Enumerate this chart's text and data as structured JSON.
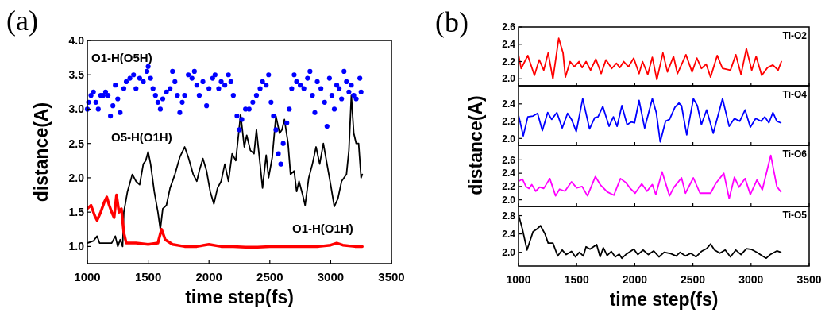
{
  "chart_data": [
    {
      "type": "line",
      "title": "(a)",
      "xlabel": "time step(fs)",
      "ylabel": "distance(A)",
      "xlim": [
        1000,
        3500
      ],
      "xticks": [
        1000,
        1500,
        2000,
        2500,
        3000,
        3500
      ],
      "ylim": [
        0.75,
        4.0
      ],
      "yticks": [
        {
          "value": 1,
          "label": "1.0"
        },
        {
          "value": 1.5,
          "label": "1.5"
        },
        {
          "value": 2,
          "label": "2.0"
        },
        {
          "value": 2.5,
          "label": "2.5"
        },
        {
          "value": 3,
          "label": "3.0"
        },
        {
          "value": 3.5,
          "label": "3.5"
        },
        {
          "value": 4,
          "label": "4.0"
        }
      ],
      "series": [
        {
          "name": "O1-H(O5H)",
          "type": "scatter",
          "marker": "circle",
          "color": "#0000ff",
          "x": [
            1000,
            1010,
            1030,
            1050,
            1070,
            1090,
            1110,
            1130,
            1150,
            1170,
            1190,
            1210,
            1230,
            1250,
            1270,
            1300,
            1320,
            1350,
            1380,
            1400,
            1430,
            1460,
            1490,
            1500,
            1520,
            1540,
            1560,
            1580,
            1600,
            1620,
            1650,
            1680,
            1700,
            1720,
            1740,
            1760,
            1780,
            1800,
            1830,
            1860,
            1880,
            1900,
            1920,
            1950,
            1980,
            2000,
            2030,
            2050,
            2080,
            2100,
            2130,
            2160,
            2180,
            2200,
            2230,
            2250,
            2270,
            2300,
            2330,
            2360,
            2390,
            2420,
            2440,
            2470,
            2490,
            2510,
            2530,
            2550,
            2570,
            2590,
            2610,
            2640,
            2660,
            2680,
            2700,
            2720,
            2750,
            2780,
            2810,
            2830,
            2850,
            2870,
            2890,
            2920,
            2950,
            2970,
            2990,
            3010,
            3030,
            3050,
            3070,
            3090,
            3110,
            3130,
            3150,
            3170,
            3190,
            3210,
            3240,
            3250
          ],
          "values": [
            3.0,
            3.1,
            3.2,
            3.25,
            3.1,
            3.0,
            3.2,
            3.2,
            3.25,
            3.2,
            2.9,
            3.05,
            3.35,
            3.15,
            2.95,
            3.3,
            3.4,
            3.45,
            3.5,
            3.3,
            3.45,
            3.4,
            3.55,
            3.62,
            3.45,
            3.3,
            3.2,
            3.1,
            3.0,
            3.15,
            3.25,
            3.3,
            3.55,
            3.4,
            3.2,
            2.95,
            3.1,
            3.2,
            3.5,
            3.45,
            3.55,
            3.35,
            3.2,
            3.4,
            3.05,
            3.3,
            3.45,
            3.5,
            3.3,
            3.4,
            3.35,
            3.5,
            3.4,
            3.2,
            2.9,
            2.7,
            2.85,
            3.0,
            3.0,
            3.1,
            3.2,
            3.3,
            3.4,
            3.35,
            3.5,
            3.1,
            2.9,
            2.7,
            2.35,
            2.2,
            2.5,
            2.8,
            3.0,
            3.3,
            3.5,
            3.4,
            3.35,
            3.3,
            3.45,
            3.55,
            3.2,
            2.95,
            3.4,
            3.3,
            3.1,
            2.75,
            3.45,
            3.2,
            3.0,
            3.35,
            3.3,
            3.15,
            3.55,
            3.4,
            3.25,
            3.35,
            3.2,
            3.15,
            3.45,
            3.25
          ]
        },
        {
          "name": "O5-H(O1H)",
          "color": "#000000",
          "x": [
            1000,
            1050,
            1080,
            1100,
            1150,
            1200,
            1230,
            1250,
            1270,
            1290,
            1300,
            1330,
            1370,
            1400,
            1430,
            1460,
            1480,
            1500,
            1520,
            1550,
            1580,
            1600,
            1620,
            1650,
            1680,
            1720,
            1760,
            1800,
            1830,
            1870,
            1900,
            1920,
            1950,
            1980,
            2010,
            2040,
            2070,
            2100,
            2130,
            2160,
            2190,
            2220,
            2260,
            2290,
            2310,
            2340,
            2370,
            2390,
            2420,
            2440,
            2470,
            2490,
            2520,
            2550,
            2580,
            2600,
            2620,
            2650,
            2670,
            2700,
            2720,
            2740,
            2770,
            2790,
            2820,
            2850,
            2880,
            2910,
            2940,
            2970,
            3000,
            3030,
            3060,
            3090,
            3130,
            3150,
            3170,
            3190,
            3210,
            3230,
            3250,
            3260
          ],
          "values": [
            1.05,
            1.08,
            1.15,
            1.05,
            1.05,
            1.05,
            1.15,
            1.0,
            1.1,
            1.0,
            1.5,
            1.8,
            2.05,
            1.95,
            1.9,
            2.2,
            2.25,
            2.38,
            2.2,
            1.8,
            1.5,
            1.25,
            1.55,
            1.6,
            1.85,
            2.05,
            2.3,
            2.45,
            2.3,
            2.05,
            1.95,
            2.1,
            2.28,
            2.1,
            1.8,
            1.62,
            1.85,
            1.95,
            2.2,
            1.95,
            2.35,
            2.25,
            2.92,
            2.45,
            2.62,
            2.4,
            2.35,
            2.7,
            2.2,
            1.85,
            2.33,
            2.0,
            2.3,
            2.9,
            2.65,
            2.7,
            2.85,
            2.5,
            2.05,
            2.1,
            1.8,
            1.95,
            1.75,
            1.6,
            2.0,
            2.2,
            2.45,
            2.2,
            2.5,
            2.2,
            1.9,
            1.58,
            1.7,
            1.95,
            2.05,
            2.4,
            3.2,
            2.65,
            2.5,
            2.5,
            2.0,
            2.05
          ]
        },
        {
          "name": "O1-H(O1H)",
          "color": "#ff0000",
          "x": [
            1000,
            1030,
            1060,
            1080,
            1110,
            1140,
            1160,
            1180,
            1200,
            1220,
            1240,
            1260,
            1280,
            1300,
            1320,
            1400,
            1500,
            1580,
            1610,
            1640,
            1700,
            1800,
            1900,
            2000,
            2100,
            2200,
            2300,
            2400,
            2500,
            2600,
            2700,
            2800,
            2900,
            3000,
            3050,
            3100,
            3200,
            3260
          ],
          "values": [
            1.55,
            1.6,
            1.45,
            1.38,
            1.5,
            1.65,
            1.72,
            1.6,
            1.5,
            1.42,
            1.75,
            1.5,
            1.55,
            1.2,
            1.05,
            1.05,
            1.03,
            1.05,
            1.25,
            1.1,
            1.03,
            1.0,
            1.0,
            1.03,
            1.0,
            1.0,
            0.99,
            0.99,
            1.0,
            1.0,
            1.0,
            1.0,
            1.0,
            1.02,
            1.05,
            1.02,
            1.0,
            1.0
          ]
        }
      ]
    },
    {
      "type": "line",
      "title": "(b)",
      "xlim": [
        1000,
        3500
      ],
      "xticks": [
        1000,
        1500,
        2000,
        2500,
        3000,
        3500
      ],
      "tick_labels": "y",
      "ylim": [
        1.92,
        2.6
      ],
      "yticks": [
        {
          "value": 2,
          "label": "2.0"
        },
        {
          "value": 2.2,
          "label": "2.2"
        },
        {
          "value": 2.4,
          "label": "2.4"
        },
        {
          "value": 2.6,
          "label": "2.6"
        }
      ],
      "series": [
        {
          "name": "Ti-O2",
          "color": "#ff0000",
          "x": [
            1000,
            1023,
            1080,
            1137,
            1178,
            1217,
            1255,
            1296,
            1346,
            1383,
            1403,
            1444,
            1479,
            1520,
            1547,
            1581,
            1620,
            1665,
            1711,
            1752,
            1802,
            1843,
            1871,
            1905,
            1946,
            1991,
            2037,
            2067,
            2112,
            2151,
            2190,
            2242,
            2281,
            2333,
            2367,
            2440,
            2493,
            2534,
            2573,
            2614,
            2652,
            2709,
            2755,
            2823,
            2869,
            2914,
            2960,
            3006,
            3044,
            3092,
            3142,
            3188,
            3233,
            3261
          ],
          "values": [
            2.28,
            2.12,
            2.27,
            2.04,
            2.22,
            2.1,
            2.3,
            2.0,
            2.47,
            2.3,
            2.02,
            2.2,
            2.14,
            2.2,
            2.13,
            2.2,
            2.1,
            2.23,
            2.06,
            2.22,
            2.12,
            2.18,
            2.13,
            2.2,
            2.14,
            2.24,
            2.06,
            2.2,
            2.05,
            2.25,
            1.99,
            2.3,
            2.08,
            2.26,
            2.06,
            2.28,
            2.08,
            2.24,
            2.12,
            2.17,
            2.02,
            2.27,
            2.12,
            2.1,
            2.28,
            2.05,
            2.35,
            2.1,
            2.26,
            2.04,
            2.13,
            2.16,
            2.1,
            2.2
          ]
        }
      ]
    },
    {
      "type": "line",
      "ylabel": "distance(A)",
      "xlim": [
        1000,
        3500
      ],
      "xticks": [
        1000,
        1500,
        2000,
        2500,
        3000,
        3500
      ],
      "tick_labels": "y",
      "ylim": [
        1.92,
        2.61
      ],
      "yticks": [
        {
          "value": 2,
          "label": "2.0"
        },
        {
          "value": 2.2,
          "label": "2.2"
        },
        {
          "value": 2.4,
          "label": "2.4"
        }
      ],
      "series": [
        {
          "name": "Ti-O4",
          "color": "#0000ff",
          "x": [
            1000,
            1041,
            1080,
            1125,
            1164,
            1205,
            1251,
            1285,
            1330,
            1376,
            1422,
            1456,
            1497,
            1552,
            1611,
            1656,
            1684,
            1725,
            1779,
            1816,
            1848,
            1889,
            1934,
            1969,
            1998,
            2037,
            2085,
            2151,
            2185,
            2219,
            2265,
            2299,
            2345,
            2379,
            2402,
            2447,
            2504,
            2538,
            2573,
            2618,
            2675,
            2755,
            2812,
            2857,
            2903,
            2949,
            2994,
            3040,
            3085,
            3119,
            3154,
            3188,
            3222,
            3256
          ],
          "values": [
            2.27,
            2.03,
            2.25,
            2.26,
            2.29,
            2.09,
            2.3,
            2.22,
            2.3,
            2.12,
            2.29,
            2.22,
            2.08,
            2.46,
            2.11,
            2.24,
            2.25,
            2.37,
            2.14,
            2.25,
            2.14,
            2.38,
            2.16,
            2.19,
            2.18,
            2.44,
            2.12,
            2.46,
            2.3,
            1.96,
            2.2,
            2.22,
            2.36,
            2.41,
            2.38,
            2.04,
            2.46,
            2.38,
            2.16,
            2.33,
            2.06,
            2.46,
            2.14,
            2.23,
            2.2,
            2.33,
            2.13,
            2.23,
            2.2,
            2.25,
            2.18,
            2.3,
            2.2,
            2.18
          ]
        }
      ]
    },
    {
      "type": "line",
      "xlim": [
        1000,
        3500
      ],
      "xticks": [
        1000,
        1500,
        2000,
        2500,
        3000,
        3500
      ],
      "tick_labels": "y",
      "ylim": [
        1.9,
        2.82
      ],
      "yticks": [
        {
          "value": 2,
          "label": "2.0"
        },
        {
          "value": 2.2,
          "label": "2.2"
        },
        {
          "value": 2.4,
          "label": "2.4"
        },
        {
          "value": 2.6,
          "label": "2.6"
        }
      ],
      "series": [
        {
          "name": "Ti-O6",
          "color": "#ff00ff",
          "x": [
            1000,
            1034,
            1064,
            1091,
            1114,
            1148,
            1182,
            1217,
            1269,
            1319,
            1353,
            1399,
            1456,
            1501,
            1547,
            1593,
            1661,
            1706,
            1763,
            1820,
            1877,
            1923,
            1957,
            2003,
            2060,
            2105,
            2151,
            2181,
            2235,
            2299,
            2333,
            2402,
            2436,
            2504,
            2561,
            2595,
            2652,
            2698,
            2766,
            2812,
            2857,
            2896,
            2949,
            2994,
            3051,
            3097,
            3170,
            3222,
            3256
          ],
          "values": [
            2.28,
            2.31,
            2.2,
            2.17,
            2.23,
            2.13,
            2.19,
            2.17,
            2.32,
            2.06,
            2.16,
            2.13,
            2.27,
            2.18,
            2.2,
            2.06,
            2.35,
            2.22,
            2.12,
            2.07,
            2.32,
            2.26,
            2.18,
            2.1,
            2.24,
            2.13,
            2.23,
            2.08,
            2.42,
            2.06,
            2.18,
            2.33,
            2.1,
            2.33,
            2.1,
            2.1,
            2.1,
            2.25,
            2.4,
            2.02,
            2.34,
            2.19,
            2.32,
            2.08,
            2.3,
            2.15,
            2.67,
            2.2,
            2.12
          ]
        }
      ]
    },
    {
      "type": "line",
      "xlabel": "time step(fs)",
      "xlim": [
        1000,
        3500
      ],
      "xticks": [
        1000,
        1500,
        2000,
        2500,
        3000,
        3500
      ],
      "ylim": [
        1.7,
        3.0
      ],
      "yticks": [
        {
          "value": 2,
          "label": "2.0"
        },
        {
          "value": 2.4,
          "label": "2.4"
        },
        {
          "value": 2.8,
          "label": "2.8"
        }
      ],
      "series": [
        {
          "name": "Ti-O5",
          "color": "#000000",
          "x": [
            1000,
            1034,
            1073,
            1125,
            1155,
            1189,
            1228,
            1255,
            1296,
            1337,
            1376,
            1410,
            1456,
            1490,
            1524,
            1558,
            1581,
            1615,
            1672,
            1702,
            1729,
            1763,
            1798,
            1832,
            1866,
            1889,
            1923,
            1991,
            2026,
            2071,
            2117,
            2162,
            2208,
            2253,
            2310,
            2356,
            2390,
            2436,
            2481,
            2527,
            2573,
            2618,
            2652,
            2686,
            2732,
            2778,
            2823,
            2869,
            2914,
            2960,
            3006,
            3051,
            3097,
            3131,
            3165,
            3222,
            3256
          ],
          "values": [
            2.82,
            2.5,
            2.05,
            2.45,
            2.5,
            2.58,
            2.4,
            2.2,
            2.2,
            1.92,
            2.05,
            1.95,
            2.02,
            1.9,
            2.0,
            1.92,
            2.12,
            2.07,
            2.17,
            1.9,
            2.1,
            1.93,
            2.02,
            1.9,
            1.96,
            1.87,
            1.95,
            2.07,
            1.95,
            2.05,
            1.95,
            2.03,
            1.9,
            2.0,
            1.97,
            1.92,
            2.0,
            1.92,
            1.98,
            1.9,
            2.02,
            2.08,
            2.18,
            2.05,
            1.98,
            2.05,
            1.9,
            2.05,
            1.95,
            2.08,
            2.06,
            2.0,
            1.92,
            1.87,
            1.95,
            2.03,
            2.0
          ]
        }
      ]
    }
  ]
}
